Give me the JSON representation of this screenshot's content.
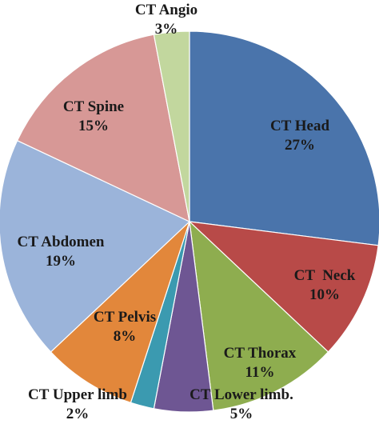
{
  "chart_data": {
    "type": "pie",
    "title": "",
    "slices": [
      {
        "category": "CT Head",
        "value": 27,
        "label": "27%",
        "color": "#4a74ab"
      },
      {
        "category": "CT  Neck",
        "value": 10,
        "label": "10%",
        "color": "#b84a48"
      },
      {
        "category": "CT Thorax",
        "value": 11,
        "label": "11%",
        "color": "#8ead4f"
      },
      {
        "category": "CT Lower limb.",
        "value": 5,
        "label": "5%",
        "color": "#6e5693"
      },
      {
        "category": "",
        "value": 2,
        "label": "",
        "color": "#3b9ab0"
      },
      {
        "category": "CT Pelvis",
        "value": 8,
        "label": "8%",
        "color": "#e2873b"
      },
      {
        "category": "CT Abdomen",
        "value": 19,
        "label": "19%",
        "color": "#9bb4da"
      },
      {
        "category": "CT Spine",
        "value": 15,
        "label": "15%",
        "color": "#d79896"
      },
      {
        "category": "CT Angio",
        "value": 3,
        "label": "3%",
        "color": "#c2d79e"
      }
    ],
    "external_labels": [
      {
        "category": "CT Upper limb",
        "label": "2%"
      }
    ],
    "legend": "none"
  }
}
